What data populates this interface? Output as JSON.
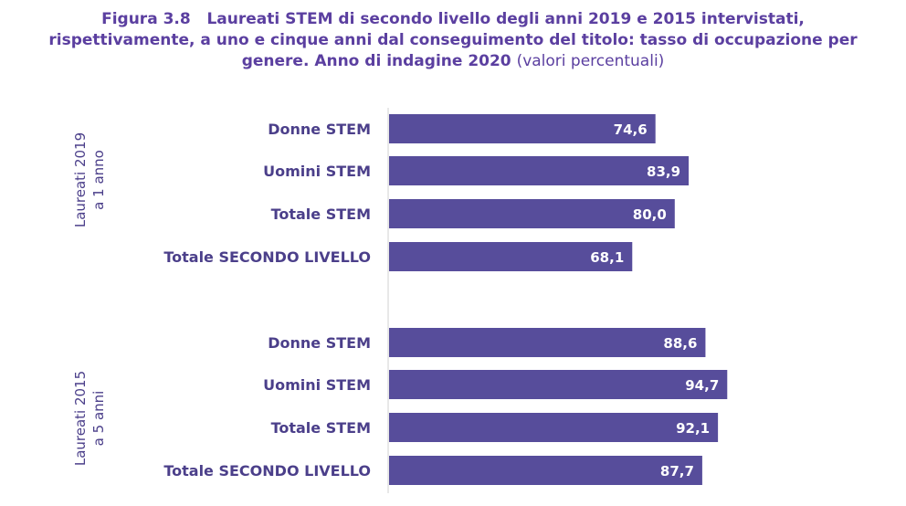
{
  "chart_data": {
    "type": "bar",
    "orientation": "horizontal",
    "title_line1": "Figura 3.8   Laureati STEM di secondo livello degli anni 2019 e 2015 intervistati,",
    "title_line2": "rispettivamente, a uno e cinque anni dal conseguimento del titolo: tasso di occupazione per",
    "title_line3": "genere. Anno di indagine 2020",
    "subtitle": "(valori percentuali)",
    "xlim": [
      0,
      100
    ],
    "groups": [
      {
        "label_line1": "Laureati 2019",
        "label_line2": "a 1 anno",
        "categories": [
          "Donne STEM",
          "Uomini STEM",
          "Totale STEM",
          "Totale SECONDO LIVELLO"
        ],
        "values": [
          74.6,
          83.9,
          80.0,
          68.1
        ],
        "value_labels": [
          "74,6",
          "83,9",
          "80,0",
          "68,1"
        ]
      },
      {
        "label_line1": "Laureati 2015",
        "label_line2": "a 5 anni",
        "categories": [
          "Donne STEM",
          "Uomini STEM",
          "Totale STEM",
          "Totale SECONDO LIVELLO"
        ],
        "values": [
          88.6,
          94.7,
          92.1,
          87.7
        ],
        "value_labels": [
          "88,6",
          "94,7",
          "92,1",
          "87,7"
        ]
      }
    ],
    "colors": {
      "bar": "#574d9b",
      "text": "#4b3f8a",
      "title": "#5b3fa0",
      "axis": "#d0d0d0"
    }
  }
}
